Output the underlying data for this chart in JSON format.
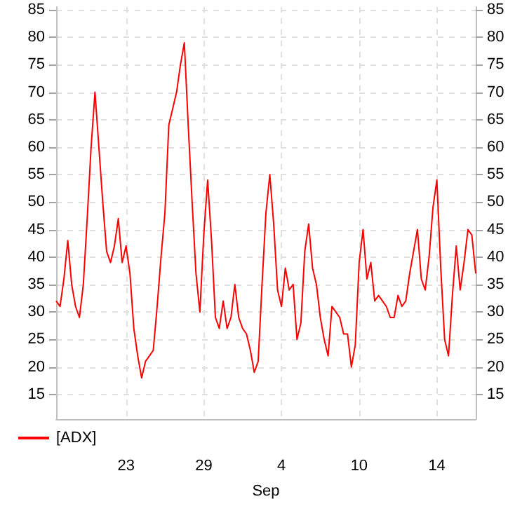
{
  "chart_data": {
    "type": "line",
    "xlabel": "Sep",
    "categories": [
      null,
      null,
      null,
      null,
      null,
      null,
      null,
      null,
      null,
      null,
      null,
      null,
      null,
      null,
      null,
      null,
      null,
      null,
      "23",
      null,
      null,
      null,
      null,
      null,
      null,
      null,
      null,
      null,
      null,
      null,
      null,
      null,
      null,
      null,
      null,
      null,
      null,
      null,
      "29",
      null,
      null,
      null,
      null,
      null,
      null,
      null,
      null,
      null,
      null,
      null,
      null,
      null,
      null,
      null,
      null,
      null,
      null,
      null,
      "4",
      null,
      null,
      null,
      null,
      null,
      null,
      null,
      null,
      null,
      null,
      null,
      null,
      null,
      null,
      null,
      null,
      null,
      null,
      null,
      "10",
      null,
      null,
      null,
      null,
      null,
      null,
      null,
      null,
      null,
      null,
      null,
      null,
      null,
      null,
      null,
      null,
      null,
      null,
      null,
      "14",
      null,
      null,
      null,
      null,
      null,
      null,
      null,
      null,
      null,
      null
    ],
    "series": [
      {
        "name": "[ADX]",
        "color": "#ff0000",
        "values": [
          32,
          31,
          36,
          43,
          35,
          31,
          29,
          35,
          47,
          60,
          70,
          60,
          50,
          41,
          39,
          42,
          47,
          39,
          42,
          37,
          27,
          22,
          18,
          21,
          22,
          23,
          31,
          40,
          48,
          64,
          67,
          70,
          75,
          79,
          64,
          50,
          37,
          30,
          44,
          54,
          43,
          29,
          27,
          32,
          27,
          29,
          35,
          29,
          27,
          26,
          23,
          19,
          21,
          35,
          48,
          55,
          46,
          34,
          31,
          38,
          34,
          35,
          25,
          28,
          41,
          46,
          38,
          35,
          29,
          25,
          22,
          31,
          30,
          29,
          26,
          26,
          20,
          24,
          39,
          45,
          36,
          39,
          32,
          33,
          32,
          31,
          29,
          29,
          33,
          31,
          32,
          37,
          41,
          45,
          36,
          34,
          40,
          49,
          54,
          38,
          25,
          22,
          33,
          42,
          34,
          39,
          45,
          44,
          37
        ]
      }
    ],
    "ylim": [
      10.5,
      85.5
    ],
    "yticks": [
      15,
      20,
      25,
      30,
      35,
      40,
      45,
      50,
      55,
      60,
      65,
      70,
      75,
      80,
      85
    ],
    "y2lim": [
      10.5,
      85.5
    ],
    "y2ticks": [
      15,
      20,
      25,
      30,
      35,
      40,
      45,
      50,
      55,
      60,
      65,
      70,
      75,
      80,
      85
    ],
    "grid": true,
    "legend": "bottom left",
    "marker": "none",
    "line_style": "solid"
  }
}
